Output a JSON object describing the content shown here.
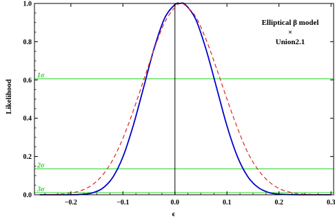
{
  "chart_data": {
    "type": "line",
    "xlabel": "ϵ",
    "ylabel": "Likelihood",
    "xlim": [
      -0.27,
      0.305
    ],
    "ylim": [
      0,
      1.0
    ],
    "x_ticks": [
      -0.2,
      -0.1,
      0.0,
      0.1,
      0.2,
      0.3
    ],
    "x_tick_labels": [
      "−0.2",
      "−0.1",
      "0.0",
      "0.1",
      "0.2",
      "0.3"
    ],
    "y_ticks": [
      0.0,
      0.2,
      0.4,
      0.6,
      0.8,
      1.0
    ],
    "y_tick_labels": [
      "0.0",
      "0.2",
      "0.4",
      "0.6",
      "0.8",
      "1.0"
    ],
    "annotation": {
      "line1": "Elliptical β model",
      "line2": "×",
      "line3": "Union2.1"
    },
    "confidence_levels": [
      {
        "label": "1σ",
        "value": 0.6065
      },
      {
        "label": "2σ",
        "value": 0.1353
      },
      {
        "label": "3σ",
        "value": 0.0111
      }
    ],
    "series": [
      {
        "style": "solid",
        "color": "#0000cc",
        "x": [
          -0.26,
          -0.24,
          -0.22,
          -0.2,
          -0.18,
          -0.16,
          -0.14,
          -0.12,
          -0.1,
          -0.08,
          -0.06,
          -0.04,
          -0.02,
          0.0,
          0.01,
          0.02,
          0.04,
          0.06,
          0.08,
          0.1,
          0.12,
          0.14,
          0.16,
          0.18,
          0.2,
          0.22,
          0.24,
          0.26,
          0.28,
          0.3
        ],
        "y": [
          0.0,
          0.0,
          0.0,
          0.0,
          0.002,
          0.009,
          0.032,
          0.089,
          0.198,
          0.363,
          0.563,
          0.765,
          0.922,
          0.994,
          1.0,
          0.994,
          0.917,
          0.758,
          0.56,
          0.36,
          0.2,
          0.095,
          0.038,
          0.012,
          0.003,
          0.001,
          0.0,
          0.0,
          0.0,
          0.0
        ]
      },
      {
        "style": "dashed",
        "color": "#e03030",
        "x": [
          -0.26,
          -0.24,
          -0.22,
          -0.2,
          -0.18,
          -0.16,
          -0.14,
          -0.12,
          -0.1,
          -0.08,
          -0.06,
          -0.04,
          -0.02,
          0.0,
          0.01,
          0.02,
          0.04,
          0.06,
          0.08,
          0.1,
          0.12,
          0.14,
          0.16,
          0.18,
          0.2,
          0.22,
          0.24,
          0.26,
          0.28,
          0.3
        ],
        "y": [
          0.0,
          0.001,
          0.003,
          0.009,
          0.022,
          0.05,
          0.1,
          0.18,
          0.295,
          0.44,
          0.6,
          0.76,
          0.9,
          0.98,
          1.0,
          0.99,
          0.93,
          0.81,
          0.66,
          0.5,
          0.35,
          0.22,
          0.13,
          0.07,
          0.033,
          0.014,
          0.005,
          0.002,
          0.001,
          0.0
        ]
      }
    ]
  }
}
